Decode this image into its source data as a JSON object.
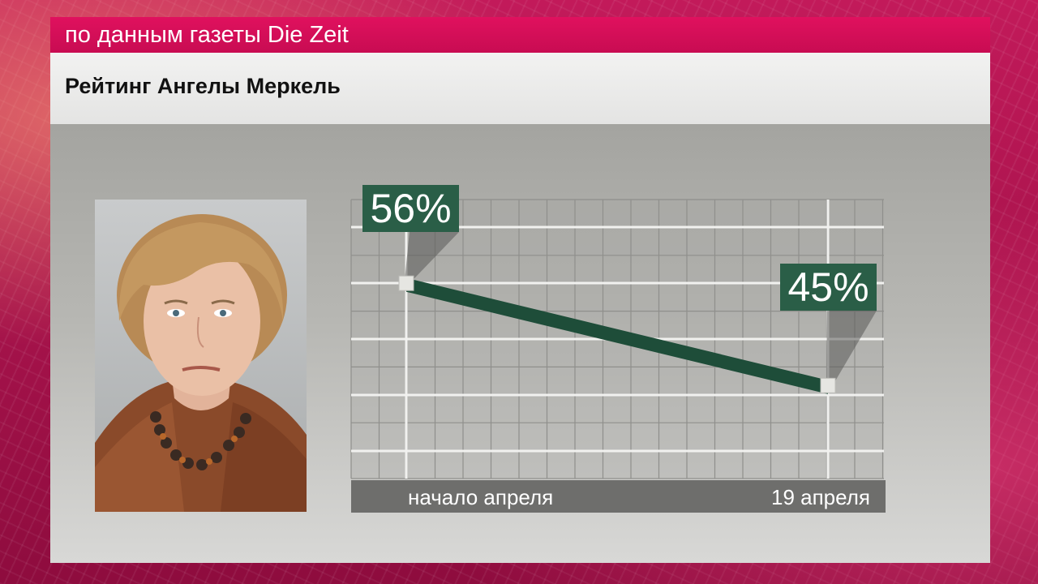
{
  "banner": {
    "source_text": "по данным газеты Die Zeit"
  },
  "header": {
    "title": "Рейтинг Ангелы Меркель"
  },
  "chart_data": {
    "type": "line",
    "title": "Рейтинг Ангелы Меркель",
    "categories": [
      "начало апреля",
      "19 апреля"
    ],
    "series": [
      {
        "values": [
          56,
          45
        ],
        "labels": [
          "56%",
          "45%"
        ]
      }
    ],
    "ylim": [
      35,
      65
    ],
    "grid": true,
    "colors": {
      "line": "#1e4d39",
      "label_bg": "#2a5e47",
      "label_text": "#ffffff",
      "axis_bar": "#6e6e6c"
    }
  }
}
